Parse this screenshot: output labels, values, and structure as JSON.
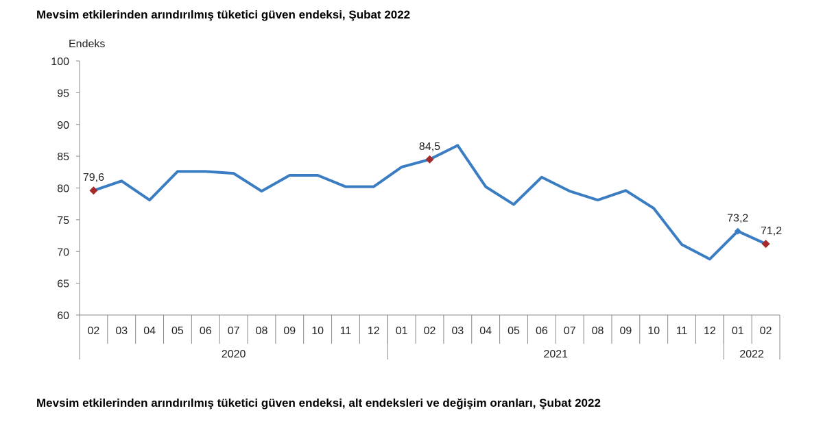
{
  "chart_title": "Mevsim etkilerinden arındırılmış tüketici güven endeksi, Şubat 2022",
  "footer_title": "Mevsim etkilerinden arındırılmış tüketici güven endeksi, alt endeksleri ve değişim oranları, Şubat 2022",
  "chart_data": {
    "type": "line",
    "title": "Mevsim etkilerinden arındırılmış tüketici güven endeksi, Şubat 2022",
    "ylabel": "Endeks",
    "xlabel": "",
    "ylim": [
      60,
      100
    ],
    "yticks": [
      60,
      65,
      70,
      75,
      80,
      85,
      90,
      95,
      100
    ],
    "grid": false,
    "categories": [
      "02",
      "03",
      "04",
      "05",
      "06",
      "07",
      "08",
      "09",
      "10",
      "11",
      "12",
      "01",
      "02",
      "03",
      "04",
      "05",
      "06",
      "07",
      "08",
      "09",
      "10",
      "11",
      "12",
      "01",
      "02"
    ],
    "years": [
      {
        "label": "2020",
        "span": 11
      },
      {
        "label": "2021",
        "span": 12
      },
      {
        "label": "2022",
        "span": 2
      }
    ],
    "values": [
      79.6,
      81.1,
      78.1,
      82.6,
      82.6,
      82.3,
      79.5,
      82.0,
      82.0,
      80.2,
      80.2,
      83.3,
      84.5,
      86.7,
      80.2,
      77.4,
      81.7,
      79.5,
      78.1,
      79.6,
      76.8,
      71.1,
      68.8,
      73.2,
      71.2
    ],
    "data_labels": [
      {
        "index": 0,
        "text": "79,6"
      },
      {
        "index": 12,
        "text": "84,5"
      },
      {
        "index": 23,
        "text": "73,2"
      },
      {
        "index": 24,
        "text": "71,2"
      }
    ],
    "highlighted_points": [
      0,
      12,
      24
    ],
    "line_color": "#3a7dc2",
    "marker_color": "#a52a2a"
  }
}
